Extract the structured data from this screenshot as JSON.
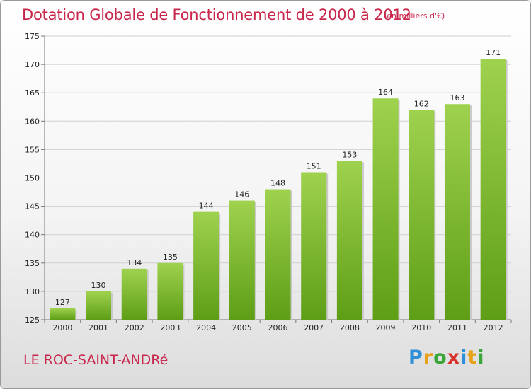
{
  "chart_data": {
    "type": "bar",
    "title": "Dotation Globale de Fonctionnement de 2000 à 2012",
    "unit_label": "(en milliers d'€)",
    "categories": [
      "2000",
      "2001",
      "2002",
      "2003",
      "2004",
      "2005",
      "2006",
      "2007",
      "2008",
      "2009",
      "2010",
      "2011",
      "2012"
    ],
    "values": [
      127,
      130,
      134,
      135,
      144,
      146,
      148,
      151,
      153,
      164,
      162,
      163,
      171
    ],
    "ylim": [
      125,
      175
    ],
    "yticks": [
      125,
      130,
      135,
      140,
      145,
      150,
      155,
      160,
      165,
      170,
      175
    ],
    "grid": true,
    "bar_color_top": "#9fd24e",
    "bar_color_bottom": "#5e9e16"
  },
  "footer": {
    "commune": "LE ROC-SAINT-ANDRé",
    "logo_letters": [
      {
        "char": "P",
        "color": "#2f8fd8"
      },
      {
        "char": "r",
        "color": "#e8a21a"
      },
      {
        "char": "o",
        "color": "#3aa63a"
      },
      {
        "char": "x",
        "color": "#d8322c"
      },
      {
        "char": "i",
        "color": "#2f8fd8"
      },
      {
        "char": "t",
        "color": "#e8a21a"
      },
      {
        "char": "i",
        "color": "#3aa63a"
      }
    ]
  }
}
